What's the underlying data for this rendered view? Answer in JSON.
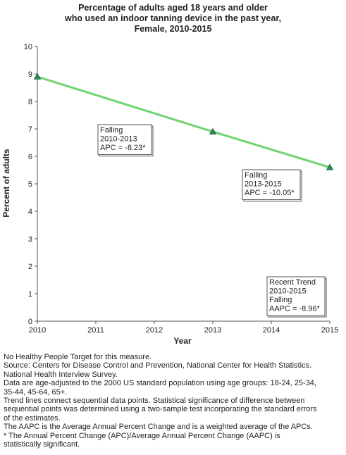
{
  "chart_data": {
    "type": "line",
    "title_lines": [
      "Percentage of adults aged 18 years and older",
      "who used an indoor tanning device in the past year,",
      "Female,  2010-2015"
    ],
    "xlabel": "Year",
    "ylabel": "Percent of adults",
    "x_ticks": [
      "2010",
      "2011",
      "2012",
      "2013",
      "2014",
      "2015"
    ],
    "y_ticks": [
      "0",
      "1",
      "2",
      "3",
      "4",
      "5",
      "6",
      "7",
      "8",
      "9",
      "10"
    ],
    "xlim": [
      2010,
      2015
    ],
    "ylim": [
      0,
      10
    ],
    "grid": false,
    "series": [
      {
        "x": [
          2010,
          2013,
          2015
        ],
        "values": [
          8.9,
          6.9,
          5.6
        ],
        "color": "#70d46e",
        "marker_color": "#2e8b57"
      }
    ],
    "annotations": [
      {
        "id": "seg1",
        "lines": [
          "Falling",
          "2010-2013",
          "APC = -8.23*"
        ]
      },
      {
        "id": "seg2",
        "lines": [
          "Falling",
          "2013-2015",
          "APC = -10.05*"
        ]
      },
      {
        "id": "trend",
        "lines": [
          "Recent Trend",
          "2010-2015",
          "Falling",
          "AAPC = -8.96*"
        ]
      }
    ]
  },
  "notes": [
    "No Healthy People Target for this measure.",
    "Source: Centers for Disease Control and Prevention, National Center for Health Statistics.",
    "National Health Interview Survey.",
    "Data are age-adjusted to the 2000 US standard population using age groups: 18-24, 25-34,",
    "35-44, 45-64, 65+.",
    "Trend lines connect sequential data points. Statistical significance of difference between",
    "sequential points was determined using a two-sample test incorporating the standard errors",
    "of the estimates.",
    "The AAPC is the Average Annual Percent Change and is a weighted average of the APCs.",
    "* The Annual Percent Change (APC)/Average Annual Percent Change (AAPC) is",
    "statistically significant."
  ]
}
